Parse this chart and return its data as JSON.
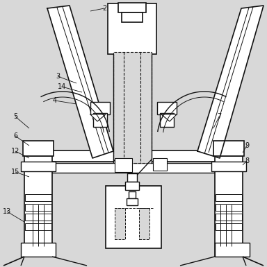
{
  "bg_color": "#d8d8d8",
  "line_color": "#111111",
  "figsize": [
    3.84,
    3.85
  ],
  "dpi": 100
}
